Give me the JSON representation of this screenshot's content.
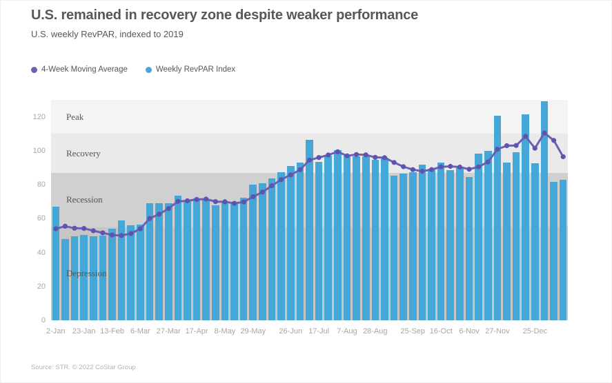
{
  "header": {
    "title": "U.S. remained in recovery zone despite weaker performance",
    "subtitle": "U.S. weekly RevPAR, indexed to 2019"
  },
  "legend": [
    {
      "label": "4-Week Moving Average",
      "color": "#6a5fb6"
    },
    {
      "label": "Weekly RevPAR Index",
      "color": "#45a7d8"
    }
  ],
  "footer": {
    "source": "Source: STR. © 2022 CoStar Group"
  },
  "chart_data": {
    "type": "bar",
    "title": "U.S. remained in recovery zone despite weaker performance",
    "subtitle": "U.S. weekly RevPAR, indexed to 2019",
    "xlabel": "",
    "ylabel": "",
    "ylim": [
      0,
      130
    ],
    "yticks": [
      0,
      20,
      40,
      60,
      80,
      100,
      120
    ],
    "grid": false,
    "legend_position": "top-left",
    "x_tick_labels": [
      {
        "week": 0,
        "label": "2-Jan"
      },
      {
        "week": 3,
        "label": "23-Jan"
      },
      {
        "week": 6,
        "label": "13-Feb"
      },
      {
        "week": 9,
        "label": "6-Mar"
      },
      {
        "week": 12,
        "label": "27-Mar"
      },
      {
        "week": 15,
        "label": "17-Apr"
      },
      {
        "week": 18,
        "label": "8-May"
      },
      {
        "week": 21,
        "label": "29-May"
      },
      {
        "week": 25,
        "label": "26-Jun"
      },
      {
        "week": 28,
        "label": "17-Jul"
      },
      {
        "week": 31,
        "label": "7-Aug"
      },
      {
        "week": 34,
        "label": "28-Aug"
      },
      {
        "week": 38,
        "label": "25-Sep"
      },
      {
        "week": 41,
        "label": "16-Oct"
      },
      {
        "week": 44,
        "label": "6-Nov"
      },
      {
        "week": 47,
        "label": "27-Nov"
      },
      {
        "week": 51,
        "label": "25-Dec"
      }
    ],
    "zones": [
      {
        "label": "Peak",
        "from": 110,
        "to": 130,
        "color": "#f4f4f4"
      },
      {
        "label": "Recovery",
        "from": 87,
        "to": 110,
        "color": "#eaeaea"
      },
      {
        "label": "Recession",
        "from": 55,
        "to": 87,
        "color": "#d0d0d0"
      },
      {
        "label": "Depression",
        "from": 0,
        "to": 55,
        "color": "#c6c6c6"
      }
    ],
    "series": [
      {
        "name": "Weekly RevPAR Index",
        "type": "bar",
        "color": "#45a7d8",
        "values": [
          67,
          48,
          49.5,
          50.5,
          49.5,
          50,
          54,
          59,
          56,
          56.5,
          69,
          69,
          69,
          73.5,
          70.5,
          72,
          71,
          68,
          70,
          69,
          72.5,
          80,
          81,
          83.5,
          87.5,
          91,
          93,
          106.5,
          93.5,
          97,
          100.5,
          97,
          96.5,
          96.5,
          94.5,
          96,
          85.5,
          86.5,
          87.5,
          92,
          89.5,
          93,
          88.5,
          90.5,
          84.5,
          98.5,
          100,
          120.5,
          93,
          99,
          121.5,
          92.5,
          129,
          81.5,
          83
        ]
      },
      {
        "name": "4-Week Moving Average",
        "type": "line",
        "color": "#6a5fb6",
        "marker_color": "#5e54ac",
        "values": [
          54,
          55.5,
          54.3,
          54.2,
          52.8,
          51.6,
          50.3,
          50,
          51.2,
          54,
          60.1,
          62.6,
          65.9,
          70.1,
          70.5,
          71.3,
          71.5,
          70,
          69.9,
          69,
          69.8,
          72.9,
          75.6,
          79.4,
          83,
          85.8,
          88.8,
          94.5,
          96,
          97.5,
          99.4,
          97,
          97.8,
          97.6,
          96.1,
          95.9,
          93.1,
          90.6,
          88.9,
          87.9,
          88.9,
          90.5,
          90.8,
          90.4,
          89.1,
          90.5,
          93.4,
          100.9,
          103,
          103.1,
          108.5,
          101.5,
          110.5,
          106.1,
          96.5
        ]
      }
    ]
  }
}
